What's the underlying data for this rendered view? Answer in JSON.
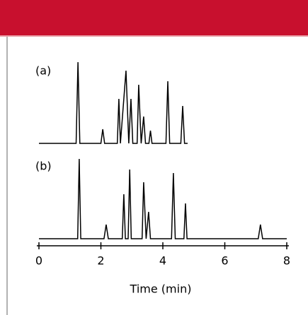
{
  "chart_data": {
    "type": "line",
    "x_label": "Time (min)",
    "xlim": [
      0,
      8
    ],
    "xticks": [
      0,
      2,
      4,
      6,
      8
    ],
    "ylim": [
      0,
      120
    ],
    "color": "#000000",
    "series": [
      {
        "name": "(a)",
        "x": [
          0,
          1.2,
          1.26,
          1.32,
          2.0,
          2.06,
          2.12,
          2.53,
          2.58,
          2.63,
          2.81,
          2.9,
          2.97,
          3.03,
          3.17,
          3.22,
          3.3,
          3.38,
          3.44,
          3.55,
          3.6,
          3.65,
          4.1,
          4.16,
          4.22,
          4.58,
          4.64,
          4.7,
          4.8
        ],
        "values": [
          0,
          0,
          115,
          0,
          0,
          20,
          0,
          0,
          63,
          0,
          103,
          0,
          63,
          0,
          0,
          83,
          0,
          38,
          0,
          0,
          18,
          0,
          0,
          88,
          0,
          0,
          53,
          0,
          0
        ]
      },
      {
        "name": "(b)",
        "x": [
          0,
          1.25,
          1.3,
          1.35,
          2.1,
          2.17,
          2.24,
          2.69,
          2.74,
          2.79,
          2.88,
          2.93,
          2.98,
          3.33,
          3.38,
          3.46,
          3.54,
          3.6,
          4.28,
          4.34,
          4.4,
          4.68,
          4.73,
          4.78,
          7.08,
          7.15,
          7.22,
          8
        ],
        "values": [
          0,
          0,
          113,
          0,
          0,
          20,
          0,
          0,
          63,
          0,
          0,
          98,
          0,
          0,
          80,
          0,
          38,
          0,
          0,
          93,
          0,
          0,
          50,
          0,
          0,
          20,
          0,
          0
        ]
      }
    ]
  }
}
